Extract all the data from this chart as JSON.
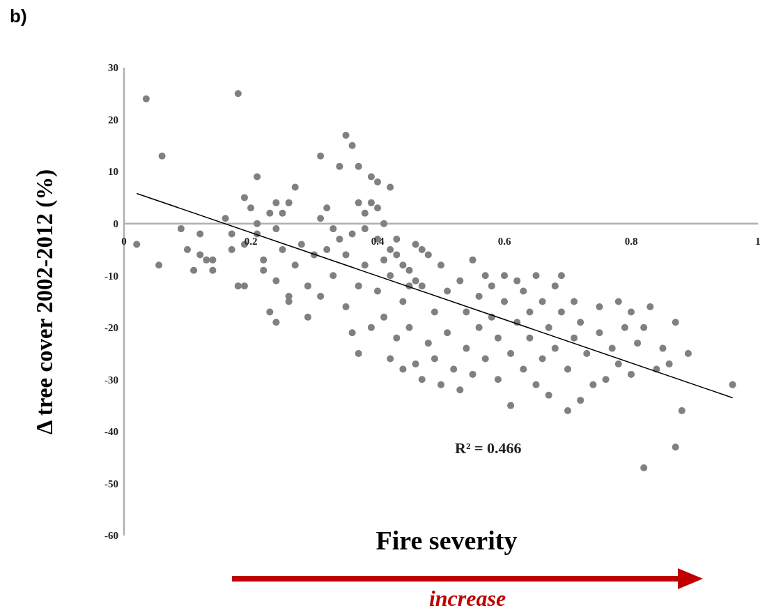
{
  "chart_data": {
    "type": "scatter",
    "xlabel": "Fire severity",
    "ylabel": "Δ tree cover 2002-2012 (%)",
    "annotations": [
      "b)",
      "R² = 0.466",
      "increase"
    ],
    "xlim": [
      0,
      1
    ],
    "ylim": [
      -60,
      30
    ],
    "xticks": [
      0,
      0.2,
      0.4,
      0.6,
      0.8,
      1
    ],
    "yticks": [
      -60,
      -50,
      -40,
      -30,
      -20,
      -10,
      0,
      10,
      20,
      30
    ],
    "marker": "circle",
    "series": [
      {
        "color": "#808080",
        "x": [
          0.02,
          0.035,
          0.055,
          0.06,
          0.09,
          0.1,
          0.11,
          0.12,
          0.12,
          0.13,
          0.14,
          0.14,
          0.16,
          0.17,
          0.17,
          0.18,
          0.18,
          0.19,
          0.19,
          0.19,
          0.2,
          0.21,
          0.21,
          0.21,
          0.22,
          0.22,
          0.23,
          0.23,
          0.24,
          0.24,
          0.24,
          0.24,
          0.25,
          0.25,
          0.26,
          0.26,
          0.26,
          0.27,
          0.27,
          0.28,
          0.29,
          0.29,
          0.3,
          0.31,
          0.31,
          0.31,
          0.32,
          0.32,
          0.33,
          0.33,
          0.34,
          0.34,
          0.35,
          0.35,
          0.35,
          0.36,
          0.36,
          0.36,
          0.37,
          0.37,
          0.37,
          0.37,
          0.38,
          0.38,
          0.38,
          0.39,
          0.39,
          0.39,
          0.4,
          0.4,
          0.4,
          0.4,
          0.41,
          0.41,
          0.41,
          0.42,
          0.42,
          0.42,
          0.42,
          0.43,
          0.43,
          0.43,
          0.44,
          0.44,
          0.44,
          0.45,
          0.45,
          0.45,
          0.46,
          0.46,
          0.46,
          0.47,
          0.47,
          0.47,
          0.48,
          0.48,
          0.49,
          0.49,
          0.5,
          0.5,
          0.51,
          0.51,
          0.52,
          0.53,
          0.53,
          0.54,
          0.54,
          0.55,
          0.55,
          0.56,
          0.56,
          0.57,
          0.57,
          0.58,
          0.58,
          0.59,
          0.59,
          0.6,
          0.6,
          0.61,
          0.61,
          0.62,
          0.62,
          0.63,
          0.63,
          0.64,
          0.64,
          0.65,
          0.65,
          0.66,
          0.66,
          0.67,
          0.67,
          0.68,
          0.68,
          0.69,
          0.69,
          0.7,
          0.7,
          0.71,
          0.71,
          0.72,
          0.72,
          0.73,
          0.74,
          0.75,
          0.75,
          0.76,
          0.77,
          0.78,
          0.78,
          0.79,
          0.8,
          0.8,
          0.81,
          0.82,
          0.82,
          0.83,
          0.84,
          0.85,
          0.86,
          0.87,
          0.87,
          0.88,
          0.89,
          0.96
        ],
        "values": [
          -4,
          24,
          -8,
          13,
          -1,
          -5,
          -9,
          -6,
          -2,
          -7,
          -9,
          -7,
          1,
          -2,
          -5,
          25,
          -12,
          -12,
          5,
          -4,
          3,
          9,
          0,
          -2,
          -7,
          -9,
          2,
          -17,
          -19,
          4,
          -1,
          -11,
          2,
          -5,
          4,
          -14,
          -15,
          -8,
          7,
          -4,
          -12,
          -18,
          -6,
          13,
          1,
          -14,
          -5,
          3,
          -1,
          -10,
          11,
          -3,
          17,
          -6,
          -16,
          15,
          -2,
          -21,
          4,
          -25,
          -12,
          11,
          -1,
          -8,
          2,
          4,
          -20,
          9,
          -3,
          -13,
          3,
          8,
          -18,
          -7,
          0,
          -5,
          -10,
          -26,
          7,
          -22,
          -3,
          -6,
          -15,
          -28,
          -8,
          -9,
          -20,
          -12,
          -4,
          -27,
          -11,
          -12,
          -30,
          -5,
          -6,
          -23,
          -17,
          -26,
          -8,
          -31,
          -13,
          -21,
          -28,
          -32,
          -11,
          -17,
          -24,
          -7,
          -29,
          -14,
          -20,
          -10,
          -26,
          -12,
          -18,
          -22,
          -30,
          -10,
          -15,
          -35,
          -25,
          -11,
          -19,
          -13,
          -28,
          -17,
          -22,
          -10,
          -31,
          -15,
          -26,
          -20,
          -33,
          -12,
          -24,
          -17,
          -10,
          -36,
          -28,
          -15,
          -22,
          -34,
          -19,
          -25,
          -31,
          -16,
          -21,
          -30,
          -24,
          -15,
          -27,
          -20,
          -17,
          -29,
          -23,
          -20,
          -47,
          -16,
          -28,
          -24,
          -27,
          -19,
          -43,
          -36,
          -25,
          -31
        ]
      },
      {
        "type": "line",
        "color": "#000000",
        "marker": "none",
        "x": [
          0.02,
          0.96
        ],
        "values": [
          5.8,
          -33.5
        ]
      }
    ]
  }
}
